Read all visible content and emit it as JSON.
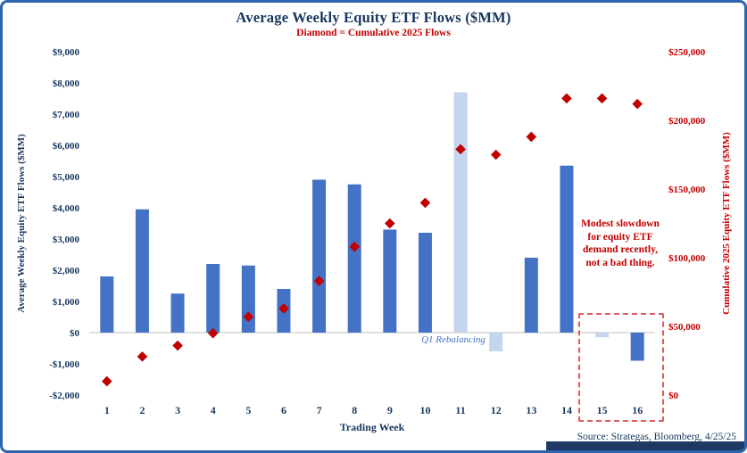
{
  "title": "Average Weekly Equity ETF Flows ($MM)",
  "subtitle": "Diamond = Cumulative 2025 Flows",
  "chart_data": {
    "type": "bar",
    "categories": [
      1,
      2,
      3,
      4,
      5,
      6,
      7,
      8,
      9,
      10,
      11,
      12,
      13,
      14,
      15,
      16
    ],
    "x_label": "Trading Week",
    "series": [
      {
        "name": "Average Weekly Equity ETF Flows ($MM)",
        "type": "bar",
        "axis": "left",
        "color": "#4472C4",
        "highlight_color": "#C5D5EE",
        "highlight_indexes": [
          10,
          11,
          14
        ],
        "values": [
          1800,
          3950,
          1250,
          2200,
          2150,
          1400,
          4900,
          4750,
          3300,
          3200,
          7700,
          -600,
          2400,
          5350,
          -150,
          -900
        ]
      },
      {
        "name": "Cumulative 2025 Flows",
        "type": "scatter",
        "marker": "diamond",
        "axis": "right",
        "color": "#C00000",
        "values": [
          10000,
          28000,
          36000,
          45000,
          57000,
          63000,
          83000,
          108000,
          125000,
          140000,
          179000,
          175000,
          188000,
          216000,
          216000,
          212000
        ]
      }
    ],
    "left_axis": {
      "title": "Average Weekly Equity ETF Flows ($MM)",
      "min": -2000,
      "max": 9000,
      "step": 1000
    },
    "right_axis": {
      "title": "Cumulative 2025 Equity ETF Flows ($MM)",
      "min": 0,
      "max": 250000,
      "step": 50000
    },
    "grid": false,
    "legend": "none"
  },
  "annotations": {
    "q1_rebalancing": "Q1 Rebalancing",
    "callout": "Modest slowdown for equity ETF demand recently, not a bad thing."
  },
  "source": "Source: Strategas, Bloomberg, 4/25/25",
  "colors": {
    "frame_border": "#2E64AE",
    "title_text": "#17375E",
    "accent_red": "#C00000",
    "bar_blue": "#4472C4",
    "bar_light_blue": "#C5D5EE",
    "dashed_box": "#E0595B",
    "footer_bar": "#1F3864",
    "zero_line": "#BFBFBF"
  }
}
